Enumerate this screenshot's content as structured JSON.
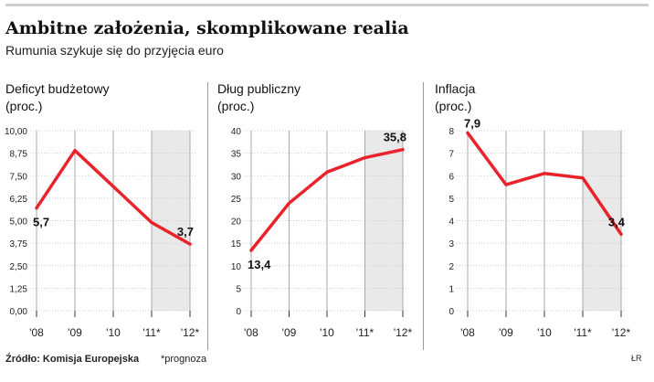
{
  "header": {
    "title": "Ambitne założenia, skomplikowane realia",
    "subtitle": "Rumunia szykuje się do przyjęcia euro"
  },
  "footer": {
    "source": "Źródło: Komisja Europejska",
    "note": "*prognoza",
    "credit": "ŁR"
  },
  "colors": {
    "line": "#e8232b",
    "forecast_shade": "#e9e9e9",
    "grid": "#a8a8a8"
  },
  "chart_data": [
    {
      "type": "line",
      "title_lines": [
        "Deficyt budżetowy",
        "(proc.)"
      ],
      "categories": [
        "'08",
        "'09",
        "'10",
        "'11*",
        "'12*"
      ],
      "values": [
        5.7,
        8.9,
        6.9,
        4.9,
        3.7
      ],
      "ylim": [
        0,
        10
      ],
      "yticks": [
        "0,00",
        "1,25",
        "2,50",
        "3,75",
        "5,00",
        "6,25",
        "7,50",
        "8,75",
        "10,00"
      ],
      "forecast_categories": [
        "'11*",
        "'12*"
      ],
      "labels": [
        {
          "index": 0,
          "text": "5,7"
        },
        {
          "index": 4,
          "text": "3,7"
        }
      ],
      "grid": "vertical"
    },
    {
      "type": "line",
      "title_lines": [
        "Dług publiczny",
        "(proc.)"
      ],
      "categories": [
        "'08",
        "'09",
        "'10",
        "'11*",
        "'12*"
      ],
      "values": [
        13.4,
        23.9,
        30.8,
        34.0,
        35.8
      ],
      "ylim": [
        0,
        40
      ],
      "yticks": [
        "0",
        "5",
        "10",
        "15",
        "20",
        "25",
        "30",
        "35",
        "40"
      ],
      "forecast_categories": [
        "'11*",
        "'12*"
      ],
      "labels": [
        {
          "index": 0,
          "text": "13,4"
        },
        {
          "index": 4,
          "text": "35,8"
        }
      ],
      "grid": "vertical"
    },
    {
      "type": "line",
      "title_lines": [
        "Inflacja",
        "(proc.)"
      ],
      "categories": [
        "'08",
        "'09",
        "'10",
        "'11*",
        "'12*"
      ],
      "values": [
        7.9,
        5.6,
        6.1,
        5.9,
        3.4
      ],
      "ylim": [
        0,
        8
      ],
      "yticks": [
        "0",
        "1",
        "2",
        "3",
        "4",
        "5",
        "6",
        "7",
        "8"
      ],
      "forecast_categories": [
        "'11*",
        "'12*"
      ],
      "labels": [
        {
          "index": 0,
          "text": "7,9"
        },
        {
          "index": 4,
          "text": "3,4"
        }
      ],
      "grid": "vertical"
    }
  ]
}
